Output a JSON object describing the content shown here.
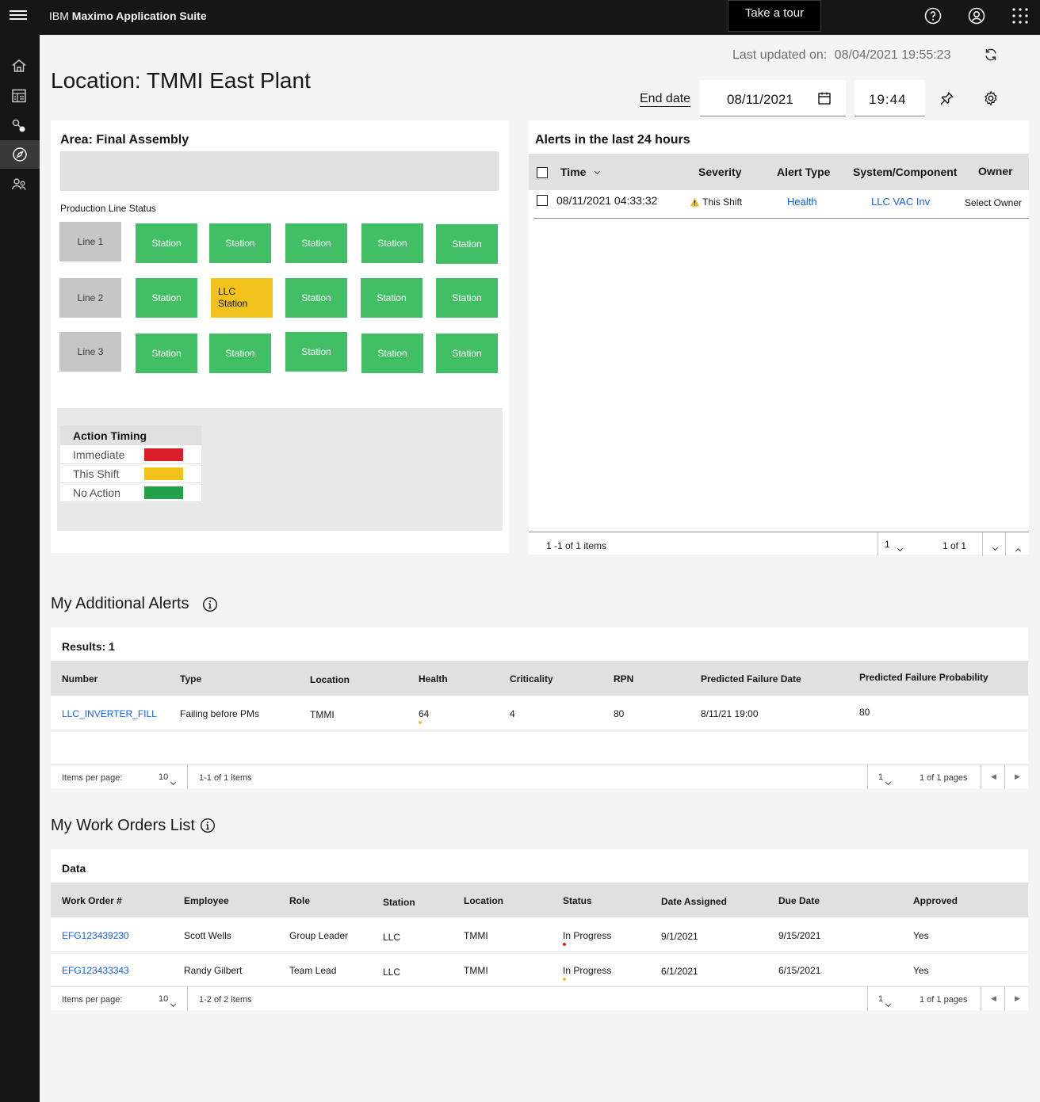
{
  "header": {
    "brand_prefix": "IBM",
    "brand_name": "Maximo Application Suite",
    "tour_button": "Take a tour",
    "help_icon": "help-icon",
    "user_icon": "user-avatar-icon",
    "apps_icon": "app-switcher-icon"
  },
  "rail": {
    "items": [
      "home-icon",
      "dashboard-icon",
      "connection-icon",
      "compass-icon",
      "users-icon"
    ],
    "active": "compass-icon"
  },
  "last_updated": {
    "label": "Last updated on:",
    "value": "08/04/2021 19:55:23"
  },
  "page_title": "Location: TMMI East Plant",
  "end_date": {
    "label": "End date",
    "date": "08/11/2021",
    "time": "19:44"
  },
  "area": {
    "title": "Area: Final Assembly",
    "production_label": "Production Line Status",
    "lines": [
      {
        "label": "Line 1",
        "stations": [
          {
            "label": "Station",
            "status": "No Action"
          },
          {
            "label": "Station",
            "status": "No Action"
          },
          {
            "label": "Station",
            "status": "No Action"
          },
          {
            "label": "Station",
            "status": "No Action"
          },
          {
            "label": "Station",
            "status": "No Action"
          }
        ]
      },
      {
        "label": "Line 2",
        "stations": [
          {
            "label": "Station",
            "status": "No Action"
          },
          {
            "label": "LLC Station",
            "status": "This Shift"
          },
          {
            "label": "Station",
            "status": "No Action"
          },
          {
            "label": "Station",
            "status": "No Action"
          },
          {
            "label": "Station",
            "status": "No Action"
          }
        ]
      },
      {
        "label": "Line 3",
        "stations": [
          {
            "label": "Station",
            "status": "No Action"
          },
          {
            "label": "Station",
            "status": "No Action"
          },
          {
            "label": "Station",
            "status": "No Action"
          },
          {
            "label": "Station",
            "status": "No Action"
          },
          {
            "label": "Station",
            "status": "No Action"
          }
        ]
      }
    ],
    "legend": {
      "title": "Action Timing",
      "items": [
        {
          "label": "Immediate",
          "color": "#da1e28"
        },
        {
          "label": "This Shift",
          "color": "#f1c21b"
        },
        {
          "label": "No Action",
          "color": "#24a148"
        }
      ]
    }
  },
  "alerts": {
    "title": "Alerts in the last 24 hours",
    "columns": [
      "Time",
      "Severity",
      "Alert Type",
      "System/Component",
      "Owner"
    ],
    "rows": [
      {
        "time": "08/11/2021 04:33:32",
        "severity": "This Shift",
        "alert_type": "Health",
        "system": "LLC VAC Inv",
        "owner": "Select Owner"
      }
    ],
    "footer": {
      "items": "1 -1 of 1 items",
      "page": "1",
      "pages": "1 of 1"
    }
  },
  "additional_alerts": {
    "title": "My Additional Alerts",
    "results": "Results: 1",
    "columns": [
      "Number",
      "Type",
      "Location",
      "Health",
      "Criticality",
      "RPN",
      "Predicted Failure Date",
      "Predicted Failure Probability"
    ],
    "rows": [
      {
        "number": "LLC_INVERTER_FILL",
        "type": "Failing before PMs",
        "location": "TMMI",
        "health": "64",
        "criticality": "4",
        "rpn": "80",
        "failure_date": "8/11/21 19:00",
        "probability": "80"
      }
    ],
    "footer": {
      "per_page_label": "Items per page:",
      "per_page": "10",
      "range": "1-1 of 1 items",
      "page": "1",
      "pages": "1 of 1 pages"
    }
  },
  "work_orders": {
    "title": "My Work Orders List",
    "caption": "Data",
    "columns": [
      "Work Order #",
      "Employee",
      "Role",
      "Station",
      "Location",
      "Status",
      "Date Assigned",
      "Due Date",
      "Approved"
    ],
    "rows": [
      {
        "wo": "EFG123439230",
        "employee": "Scott Wells",
        "role": "Group Leader",
        "station": "LLC",
        "location": "TMMI",
        "status": "In Progress",
        "status_color": "#da1e28",
        "assigned": "9/1/2021",
        "due": "9/15/2021",
        "approved": "Yes"
      },
      {
        "wo": "EFG123433343",
        "employee": "Randy Gilbert",
        "role": "Team Lead",
        "station": "LLC",
        "location": "TMMI",
        "status": "In Progress",
        "status_color": "#f1c21b",
        "assigned": "6/1/2021",
        "due": "6/15/2021",
        "approved": "Yes"
      }
    ],
    "footer": {
      "per_page_label": "Items per page:",
      "per_page": "10",
      "range": "1-2 of 2 items",
      "page": "1",
      "pages": "1 of 1 pages"
    }
  }
}
